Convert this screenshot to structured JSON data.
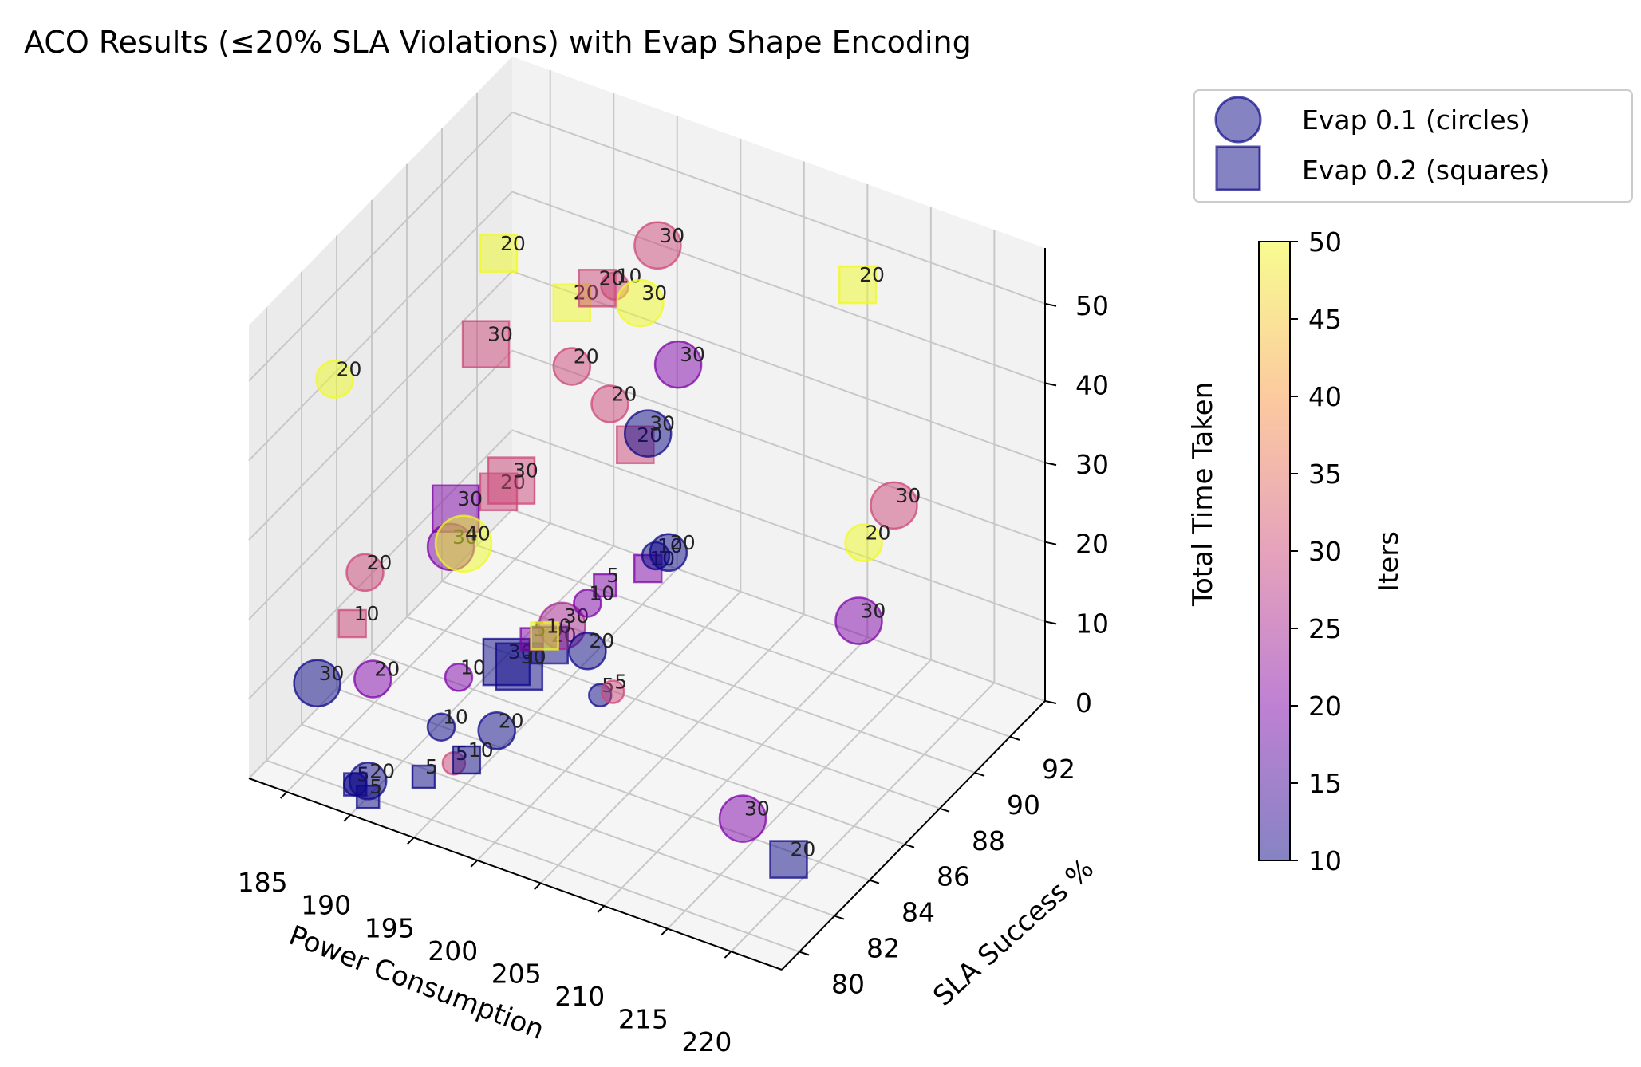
{
  "chart_data": {
    "type": "scatter",
    "title": "ACO Results (≤20% SLA Violations) with Evap Shape Encoding",
    "xlabel": "Power Consumption",
    "ylabel": "SLA Success %",
    "zlabel": "Total Time Taken",
    "xlim": [
      182,
      224
    ],
    "ylim": [
      79,
      94
    ],
    "zlim": [
      0,
      57
    ],
    "xticks": [
      185,
      190,
      195,
      200,
      205,
      210,
      215,
      220
    ],
    "yticks": [
      80,
      82,
      84,
      86,
      88,
      90,
      92
    ],
    "zticks": [
      0,
      10,
      20,
      30,
      40,
      50
    ],
    "grid": true,
    "legend_placement": "upper-right outside",
    "legend": [
      {
        "label": "Evap 0.1 (circles)",
        "marker": "circle"
      },
      {
        "label": "Evap 0.2 (squares)",
        "marker": "square"
      }
    ],
    "colorbar": {
      "label": "Iters",
      "colormap": "plasma",
      "range": [
        10,
        50
      ],
      "ticks": [
        10,
        15,
        20,
        25,
        30,
        35,
        40,
        45,
        50
      ]
    },
    "point_label_meaning": "ants",
    "series": [
      {
        "name": "Evap 0.1 (circles)",
        "marker": "circle",
        "points": [
          {
            "x": 186,
            "y": 81,
            "z": 48,
            "iters": 50,
            "ants": 20
          },
          {
            "x": 199,
            "y": 90,
            "z": 52,
            "iters": 30,
            "ants": 30
          },
          {
            "x": 197,
            "y": 89,
            "z": 48,
            "iters": 30,
            "ants": 10
          },
          {
            "x": 202,
            "y": 89,
            "z": 41,
            "iters": 20,
            "ants": 30
          },
          {
            "x": 195,
            "y": 88,
            "z": 39,
            "iters": 30,
            "ants": 20
          },
          {
            "x": 198,
            "y": 88,
            "z": 36,
            "iters": 30,
            "ants": 20
          },
          {
            "x": 201,
            "y": 88,
            "z": 34,
            "iters": 10,
            "ants": 30
          },
          {
            "x": 199,
            "y": 89,
            "z": 47,
            "iters": 50,
            "ants": 30
          },
          {
            "x": 219,
            "y": 89,
            "z": 33,
            "iters": 30,
            "ants": 30
          },
          {
            "x": 218,
            "y": 88,
            "z": 30,
            "iters": 50,
            "ants": 20
          },
          {
            "x": 219,
            "y": 87,
            "z": 23,
            "iters": 20,
            "ants": 30
          },
          {
            "x": 203,
            "y": 87,
            "z": 22,
            "iters": 10,
            "ants": 10
          },
          {
            "x": 204,
            "y": 87,
            "z": 23,
            "iters": 10,
            "ants": 20
          },
          {
            "x": 187,
            "y": 82,
            "z": 22,
            "iters": 30,
            "ants": 20
          },
          {
            "x": 191,
            "y": 84,
            "z": 23,
            "iters": 20,
            "ants": 30
          },
          {
            "x": 192,
            "y": 84,
            "z": 24,
            "iters": 50,
            "ants": 40
          },
          {
            "x": 199,
            "y": 86,
            "z": 16,
            "iters": 20,
            "ants": 10
          },
          {
            "x": 197,
            "y": 86,
            "z": 12,
            "iters": 25,
            "ants": 30
          },
          {
            "x": 199,
            "y": 86,
            "z": 10,
            "iters": 10,
            "ants": 20
          },
          {
            "x": 201,
            "y": 86,
            "z": 6,
            "iters": 30,
            "ants": 5
          },
          {
            "x": 200,
            "y": 86,
            "z": 5,
            "iters": 10,
            "ants": 5
          },
          {
            "x": 186,
            "y": 80,
            "z": 12,
            "iters": 10,
            "ants": 30
          },
          {
            "x": 189,
            "y": 81,
            "z": 12,
            "iters": 20,
            "ants": 20
          },
          {
            "x": 193,
            "y": 83,
            "z": 10,
            "iters": 20,
            "ants": 10
          },
          {
            "x": 193,
            "y": 82,
            "z": 6,
            "iters": 10,
            "ants": 10
          },
          {
            "x": 196,
            "y": 83,
            "z": 5,
            "iters": 10,
            "ants": 20
          },
          {
            "x": 194,
            "y": 82,
            "z": 2,
            "iters": 30,
            "ants": 5
          },
          {
            "x": 190,
            "y": 80,
            "z": 2,
            "iters": 10,
            "ants": 20
          },
          {
            "x": 189,
            "y": 80,
            "z": 1,
            "iters": 10,
            "ants": 5
          },
          {
            "x": 214,
            "y": 84,
            "z": 2,
            "iters": 20,
            "ants": 30
          }
        ]
      },
      {
        "name": "Evap 0.2 (squares)",
        "marker": "square",
        "points": [
          {
            "x": 192,
            "y": 86,
            "z": 56,
            "iters": 50,
            "ants": 20
          },
          {
            "x": 197,
            "y": 88,
            "z": 50,
            "iters": 30,
            "ants": 20
          },
          {
            "x": 195,
            "y": 88,
            "z": 47,
            "iters": 50,
            "ants": 20
          },
          {
            "x": 191,
            "y": 86,
            "z": 44,
            "iters": 30,
            "ants": 30
          },
          {
            "x": 212,
            "y": 92,
            "z": 50,
            "iters": 50,
            "ants": 20
          },
          {
            "x": 200,
            "y": 88,
            "z": 32,
            "iters": 30,
            "ants": 20
          },
          {
            "x": 193,
            "y": 86,
            "z": 28,
            "iters": 30,
            "ants": 30
          },
          {
            "x": 192,
            "y": 86,
            "z": 26,
            "iters": 30,
            "ants": 20
          },
          {
            "x": 190,
            "y": 85,
            "z": 25,
            "iters": 20,
            "ants": 30
          },
          {
            "x": 199,
            "y": 87,
            "z": 16,
            "iters": 20,
            "ants": 5
          },
          {
            "x": 201,
            "y": 88,
            "z": 17,
            "iters": 20,
            "ants": 10
          },
          {
            "x": 196,
            "y": 85,
            "z": 12,
            "iters": 20,
            "ants": 5
          },
          {
            "x": 197,
            "y": 85,
            "z": 13,
            "iters": 50,
            "ants": 10
          },
          {
            "x": 194,
            "y": 85,
            "z": 8,
            "iters": 10,
            "ants": 30
          },
          {
            "x": 195,
            "y": 85,
            "z": 8,
            "iters": 10,
            "ants": 30
          },
          {
            "x": 196,
            "y": 86,
            "z": 9,
            "iters": 10,
            "ants": 20
          },
          {
            "x": 186,
            "y": 82,
            "z": 15,
            "iters": 30,
            "ants": 10
          },
          {
            "x": 193,
            "y": 81,
            "z": 2,
            "iters": 10,
            "ants": 5
          },
          {
            "x": 195,
            "y": 82,
            "z": 3,
            "iters": 10,
            "ants": 10
          },
          {
            "x": 189,
            "y": 80,
            "z": 1,
            "iters": 10,
            "ants": 5
          },
          {
            "x": 190,
            "y": 80,
            "z": 0,
            "iters": 10,
            "ants": 5
          },
          {
            "x": 219,
            "y": 83,
            "z": 2,
            "iters": 10,
            "ants": 20
          }
        ]
      }
    ]
  }
}
